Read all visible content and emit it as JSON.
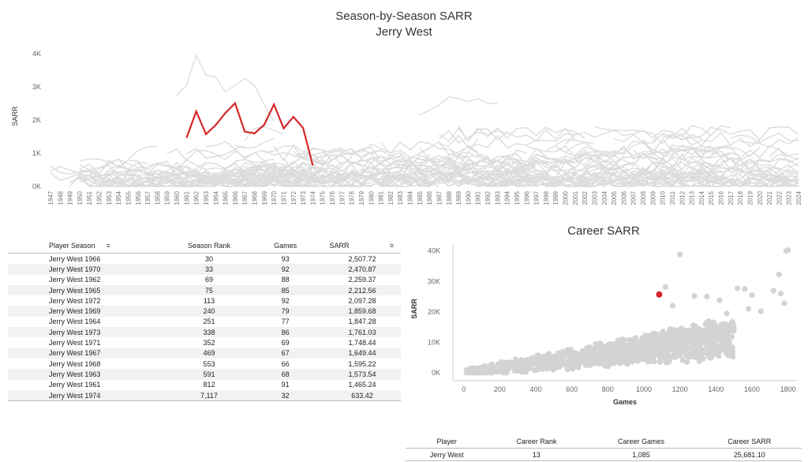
{
  "line_chart": {
    "title": "Season-by-Season SARR",
    "subtitle": "Jerry West",
    "ylabel": "SARR",
    "y_ticks": [
      "4K",
      "3K",
      "2K",
      "1K",
      "0K"
    ],
    "highlight_color": "#d62728",
    "background_color": "#d9d9d9"
  },
  "scatter_chart": {
    "title": "Career SARR",
    "xlabel": "Games",
    "ylabel": "SARR",
    "x_ticks": [
      "0",
      "200",
      "400",
      "600",
      "800",
      "1000",
      "1200",
      "1400",
      "1600",
      "1800"
    ],
    "y_ticks": [
      "40K",
      "30K",
      "20K",
      "10K",
      "0K"
    ],
    "highlight_color": "#d62728",
    "point_color": "#d3d3d3"
  },
  "seasons_table": {
    "headers": [
      "Player Season",
      "Season Rank",
      "Games",
      "SARR"
    ],
    "sort_icon": "sort-icon",
    "rows": [
      [
        "Jerry West 1966",
        "30",
        "93",
        "2,507.72"
      ],
      [
        "Jerry West 1970",
        "33",
        "92",
        "2,470.87"
      ],
      [
        "Jerry West 1962",
        "69",
        "88",
        "2,259.37"
      ],
      [
        "Jerry West 1965",
        "75",
        "85",
        "2,212.56"
      ],
      [
        "Jerry West 1972",
        "113",
        "92",
        "2,097.28"
      ],
      [
        "Jerry West 1969",
        "240",
        "79",
        "1,859.68"
      ],
      [
        "Jerry West 1964",
        "251",
        "77",
        "1,847.28"
      ],
      [
        "Jerry West 1973",
        "338",
        "86",
        "1,761.03"
      ],
      [
        "Jerry West 1971",
        "352",
        "69",
        "1,748.44"
      ],
      [
        "Jerry West 1967",
        "469",
        "67",
        "1,649.44"
      ],
      [
        "Jerry West 1968",
        "553",
        "66",
        "1,595.22"
      ],
      [
        "Jerry West 1963",
        "591",
        "68",
        "1,573.54"
      ],
      [
        "Jerry West 1961",
        "812",
        "91",
        "1,465.24"
      ],
      [
        "Jerry West 1974",
        "7,117",
        "32",
        "633.42"
      ]
    ]
  },
  "career_table": {
    "headers": [
      "Player",
      "Career Rank",
      "Career Games",
      "Career SARR"
    ],
    "row": [
      "Jerry West",
      "13",
      "1,085",
      "25,681.10"
    ]
  },
  "chart_data": [
    {
      "type": "line",
      "title": "Season-by-Season SARR",
      "subtitle": "Jerry West",
      "xlabel": "",
      "ylabel": "SARR",
      "x_range": [
        1947,
        2024
      ],
      "ylim": [
        0,
        4000
      ],
      "grid": false,
      "series": [
        {
          "name": "Jerry West",
          "x": [
            1961,
            1962,
            1963,
            1964,
            1965,
            1966,
            1967,
            1968,
            1969,
            1970,
            1971,
            1972,
            1973,
            1974
          ],
          "values": [
            1465.24,
            2259.37,
            1573.54,
            1847.28,
            2212.56,
            2507.72,
            1649.44,
            1595.22,
            1859.68,
            2470.87,
            1748.44,
            2097.28,
            1761.03,
            633.42
          ]
        }
      ],
      "background_note_series": [
        {
          "x": [
            1960,
            1961,
            1962,
            1963,
            1964,
            1965,
            1966,
            1967,
            1968,
            1969,
            1970
          ],
          "values": [
            2750,
            3050,
            3950,
            3350,
            3300,
            2850,
            3050,
            3250,
            3050,
            2450,
            1950
          ]
        },
        {
          "x": [
            1985,
            1986,
            1987,
            1988,
            1989,
            1990,
            1991,
            1992,
            1993
          ],
          "values": [
            2150,
            2300,
            2450,
            2700,
            2650,
            2550,
            2650,
            2500,
            2500
          ]
        }
      ]
    },
    {
      "type": "scatter",
      "title": "Career SARR",
      "xlabel": "Games",
      "ylabel": "SARR",
      "xlim": [
        -60,
        1850
      ],
      "ylim": [
        0,
        42000
      ],
      "highlight": {
        "name": "Jerry West",
        "x": 1085,
        "y": 25681.1
      }
    }
  ]
}
